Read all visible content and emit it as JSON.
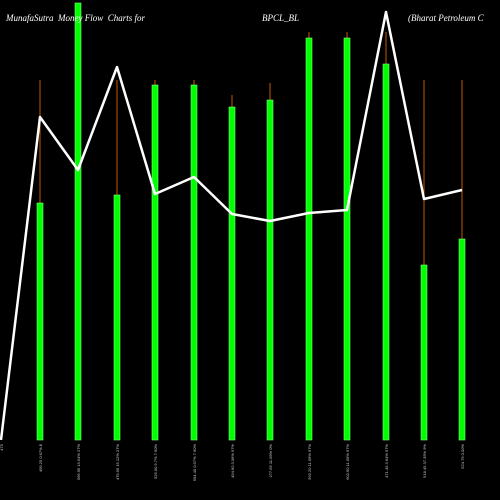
{
  "header": {
    "site": "MunafaSutra  Money Flow  Charts for",
    "symbol": "BPCL_BL",
    "company": "(Bharat Petroleum C"
  },
  "chart_data": {
    "type": "bar",
    "title": "MunafaSutra  Money Flow  Charts for BPCL_BL (Bharat Petroleum C",
    "colors": {
      "bar": "#00ff00",
      "bar_edge": "#7cff7c",
      "wick": "#c05a00",
      "line": "#ffffff",
      "background": "#000000"
    },
    "categories": [
      "475",
      "499.25 0.67% $",
      "566.95 13.54% 27%",
      "479.95 15.12% 27%",
      "526.90 9.7% 7.90%",
      "594.40 0.67% 7.90%",
      "494.60 3.06% 97%",
      "277.65 11.09% 0%",
      "592.20 11.09% 97%",
      "602.90 11.09% 97%",
      "471.45 3.64% 97%",
      "518.45 37.35% 9%",
      "524.79 0.00%"
    ],
    "bar_values": [
      0,
      237,
      437,
      245,
      355,
      355,
      333,
      340,
      402,
      402,
      376,
      175,
      201
    ],
    "wick_values": [
      0,
      360,
      437,
      360,
      360,
      360,
      345,
      357,
      408,
      408,
      408,
      360,
      360
    ],
    "line_values": [
      0,
      323,
      270,
      373,
      246,
      263,
      226,
      219,
      227,
      230,
      428,
      241,
      250
    ],
    "ylim": [
      0,
      440
    ]
  }
}
